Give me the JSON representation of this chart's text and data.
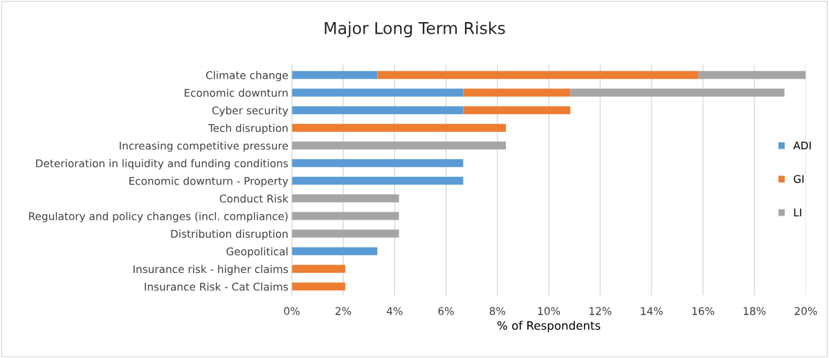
{
  "chart_data": {
    "type": "bar",
    "orientation": "horizontal",
    "stacked": true,
    "title": "Major Long Term Risks",
    "xlabel": "% of Respondents",
    "categories": [
      "Climate change",
      "Economic downturn",
      "Cyber security",
      "Tech disruption",
      "Increasing competitive pressure",
      "Deterioration in liquidity and funding conditions",
      "Economic downturn - Property",
      "Conduct Risk",
      "Regulatory and policy changes (incl. compliance)",
      "Distribution disruption",
      "Geopolitical",
      "Insurance risk - higher claims",
      "Insurance Risk - Cat Claims"
    ],
    "series": [
      {
        "name": "ADI",
        "color": "#5b9bd5",
        "values": [
          3.33,
          6.67,
          6.67,
          0,
          0,
          6.67,
          6.67,
          0,
          0,
          0,
          3.33,
          0,
          0
        ]
      },
      {
        "name": "GI",
        "color": "#ed7d31",
        "values": [
          12.5,
          4.17,
          4.17,
          8.33,
          0,
          0,
          0,
          0,
          0,
          0,
          0,
          2.08,
          2.08
        ]
      },
      {
        "name": "LI",
        "color": "#a5a5a5",
        "values": [
          4.17,
          8.33,
          0,
          0,
          8.33,
          0,
          0,
          4.17,
          4.17,
          4.17,
          0,
          0,
          0
        ]
      }
    ],
    "xlim": [
      0,
      20
    ],
    "xticks": [
      {
        "value": 0,
        "label": "0%"
      },
      {
        "value": 2,
        "label": "2%"
      },
      {
        "value": 4,
        "label": "4%"
      },
      {
        "value": 6,
        "label": "6%"
      },
      {
        "value": 8,
        "label": "8%"
      },
      {
        "value": 10,
        "label": "10%"
      },
      {
        "value": 12,
        "label": "12%"
      },
      {
        "value": 14,
        "label": "14%"
      },
      {
        "value": 16,
        "label": "16%"
      },
      {
        "value": 18,
        "label": "18%"
      },
      {
        "value": 20,
        "label": "20%"
      }
    ],
    "grid": "x",
    "legend": "right"
  }
}
